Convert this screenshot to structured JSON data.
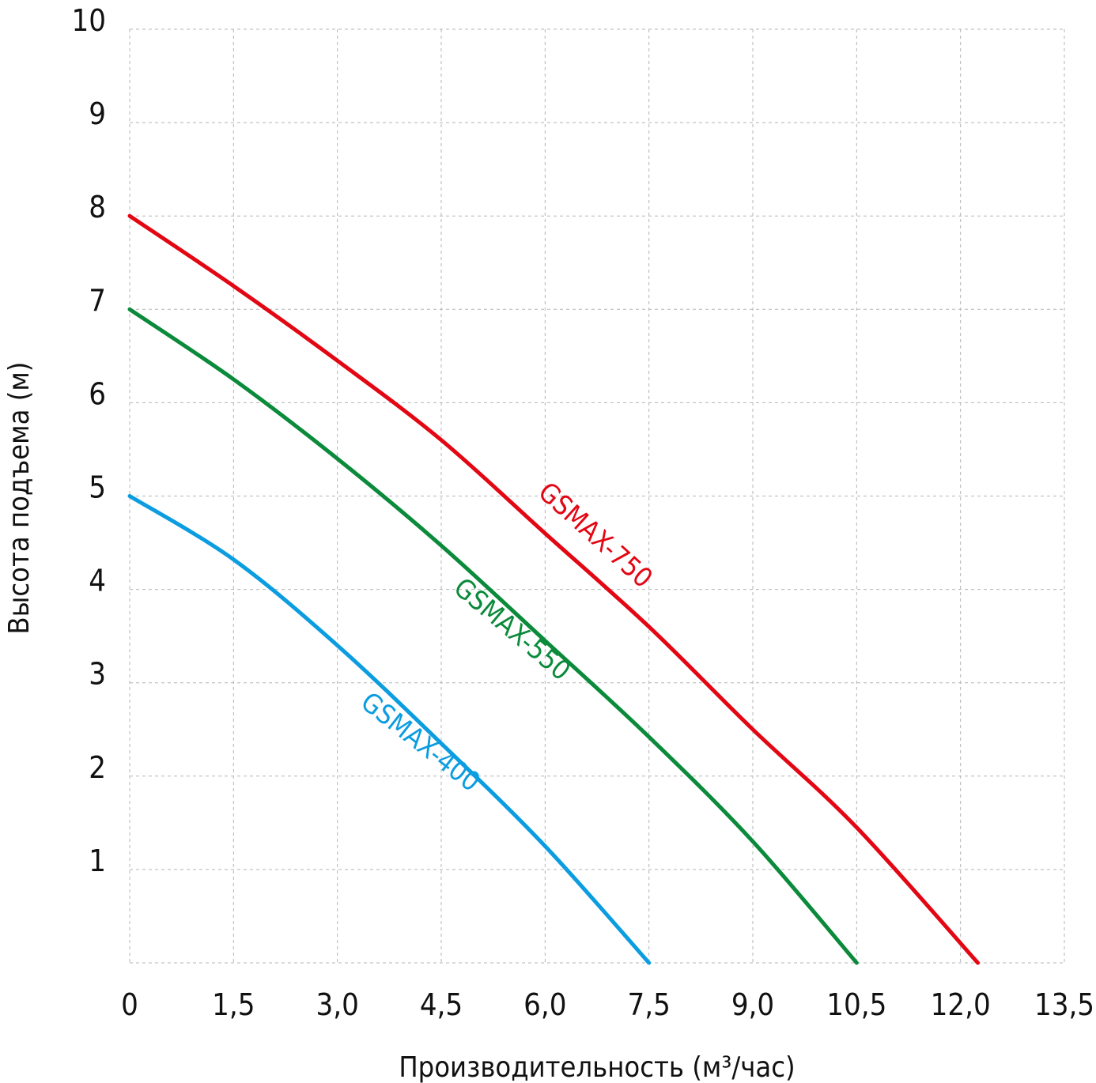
{
  "chart_data": {
    "type": "line",
    "title": "",
    "xlabel": "Производительность (м³/час)",
    "ylabel": "Высота подъема (м)",
    "xlim": [
      0,
      13.5
    ],
    "ylim": [
      0,
      10
    ],
    "grid": true,
    "x_ticks": [
      "0",
      "1,5",
      "3,0",
      "4,5",
      "6,0",
      "7,5",
      "9,0",
      "10,5",
      "12,0",
      "13,5"
    ],
    "x_tick_values": [
      0,
      1.5,
      3.0,
      4.5,
      6.0,
      7.5,
      9.0,
      10.5,
      12.0,
      13.5
    ],
    "y_ticks": [
      "1",
      "2",
      "3",
      "4",
      "5",
      "6",
      "7",
      "8",
      "9",
      "10"
    ],
    "y_tick_values": [
      1,
      2,
      3,
      4,
      5,
      6,
      7,
      8,
      9,
      10
    ],
    "series": [
      {
        "name": "GSMAX-750",
        "color": "#e30613",
        "x": [
          0,
          1.5,
          3.0,
          4.5,
          6.0,
          7.5,
          9.0,
          10.5,
          12.25
        ],
        "y": [
          8,
          7.25,
          6.45,
          5.6,
          4.6,
          3.6,
          2.5,
          1.45,
          0
        ],
        "label_at": [
          6.64,
          4.51
        ],
        "label_angle": 42
      },
      {
        "name": "GSMAX-550",
        "color": "#0a8a3a",
        "x": [
          0,
          1.5,
          3.0,
          4.5,
          6.0,
          7.5,
          9.0,
          10.5
        ],
        "y": [
          7,
          6.25,
          5.4,
          4.47,
          3.45,
          2.42,
          1.3,
          0
        ],
        "label_at": [
          5.44,
          3.5
        ],
        "label_angle": 40
      },
      {
        "name": "GSMAX-400",
        "color": "#0b9de0",
        "x": [
          0,
          1.5,
          3.0,
          4.5,
          6.0,
          7.5
        ],
        "y": [
          5,
          4.32,
          3.4,
          2.35,
          1.25,
          0
        ],
        "label_at": [
          4.12,
          2.29
        ],
        "label_angle": 38
      }
    ]
  }
}
